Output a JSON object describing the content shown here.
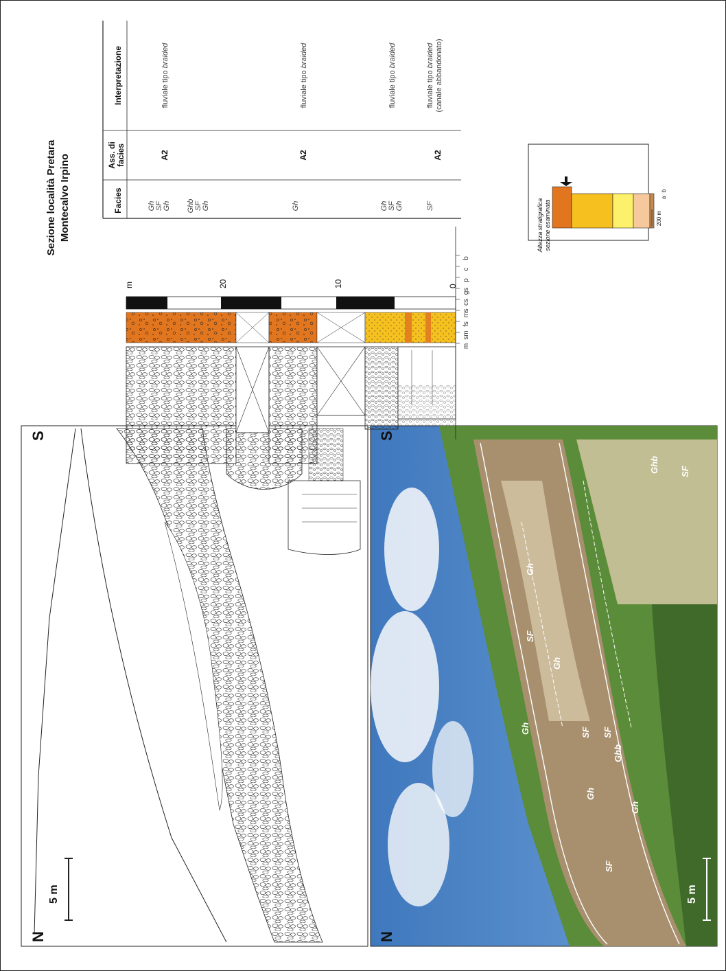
{
  "section": {
    "title_line1": "Sezione località Pretara",
    "title_line2": "Montecalvo Irpino"
  },
  "panels": {
    "left_letter": "N",
    "right_letter": "S",
    "scale_label": "5 m"
  },
  "log": {
    "unit_label": "m",
    "depth_ticks": [
      "0",
      "10",
      "20"
    ],
    "grain_sizes": [
      "m",
      "sm",
      "fs",
      "ms",
      "cs",
      "gs",
      "p",
      "c",
      "b"
    ]
  },
  "table": {
    "headers": {
      "facies": "Facies",
      "assoc_line1": "Ass. di",
      "assoc_line2": "facies",
      "interp": "Interpretazione"
    },
    "rows": [
      {
        "facies": [
          "Gh",
          "SF",
          "Gh",
          "Ghb",
          "SF",
          "Gh"
        ],
        "assoc": "A2",
        "interp_prefix": "fluviale tipo",
        "interp_em": "braided",
        "interp_note": ""
      },
      {
        "facies": [
          "Gh"
        ],
        "assoc": "A2",
        "interp_prefix": "fluviale tipo",
        "interp_em": "braided",
        "interp_note": ""
      },
      {
        "facies": [
          "Gh",
          "SF",
          "Gh"
        ],
        "assoc": "",
        "interp_prefix": "fluviale tipo",
        "interp_em": "braided",
        "interp_note": ""
      },
      {
        "facies": [
          "SF"
        ],
        "assoc": "A2",
        "interp_prefix": "fluviale  tipo",
        "interp_em": "braided",
        "interp_note": "(canale abbandonato)"
      }
    ]
  },
  "inset": {
    "line1": "Altezza stratigrafica",
    "line2": "sezione esaminata",
    "scale_label": "200 m",
    "small_labels": [
      "a",
      "b"
    ]
  },
  "photo_labels": [
    "Gh",
    "SF",
    "Gh",
    "Gh",
    "SF",
    "SF",
    "Ghb",
    "Gh",
    "Gh",
    "SF",
    "Ghb",
    "SF"
  ],
  "colors": {
    "border": "#222222",
    "orange": "#e2761f",
    "yellow": "#f6c01f",
    "pale_yellow": "#fdf06a",
    "peach": "#f5c99b",
    "tan": "#c78a4e",
    "sky": "#4f86c6",
    "cloud": "#eef3f8",
    "grass": "#5b8c3a",
    "dark_grass": "#3f6a2a",
    "rock": "#a8906f",
    "light_rock": "#cfc1a0"
  }
}
